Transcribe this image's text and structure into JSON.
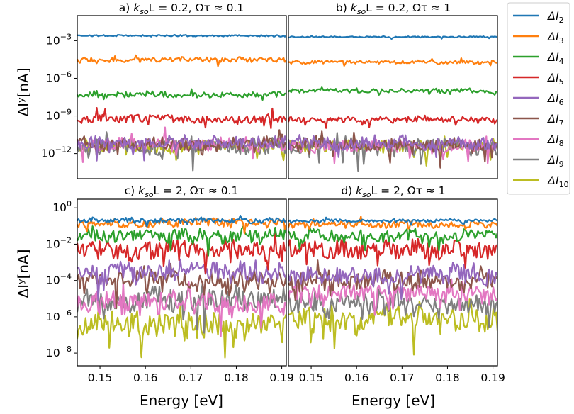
{
  "chart_data": {
    "type": "line",
    "panels": [
      {
        "title_pre": "a) ",
        "title_k": "k",
        "title_sub": "so",
        "title_post": "L = 0.2,    Ωτ ≈ 0.1",
        "ylabel": "ΔIʸ[nA]",
        "xlabel": "",
        "yscale": "log",
        "ylim": [
          1e-14,
          0.1
        ],
        "xlim": [
          0.145,
          0.191
        ],
        "yticks": [
          {
            "base": "10",
            "exp": "−3",
            "value": 0.001
          },
          {
            "base": "10",
            "exp": "−6",
            "value": 1e-06
          },
          {
            "base": "10",
            "exp": "−9",
            "value": 1e-09
          },
          {
            "base": "10",
            "exp": "−12",
            "value": 1e-12
          }
        ],
        "xticks": [],
        "levels": [
          0.0025,
          3e-05,
          5e-08,
          6e-10,
          8e-12,
          6e-12,
          5e-12,
          4e-12,
          4e-12
        ],
        "roughness": [
          0.12,
          0.35,
          0.45,
          0.6,
          0.9,
          0.9,
          0.9,
          1.1,
          0.9
        ]
      },
      {
        "title_pre": "b) ",
        "title_k": "k",
        "title_sub": "so",
        "title_post": "L = 0.2,    Ωτ ≈ 1",
        "ylabel": "",
        "xlabel": "",
        "yscale": "log",
        "ylim": [
          1e-14,
          0.1
        ],
        "xlim": [
          0.145,
          0.191
        ],
        "yticks": [],
        "xticks": [],
        "levels": [
          0.002,
          2e-05,
          1e-07,
          5e-10,
          6e-12,
          5e-12,
          4e-12,
          4e-12,
          4e-12
        ],
        "roughness": [
          0.1,
          0.25,
          0.3,
          0.45,
          0.9,
          0.9,
          0.9,
          1.3,
          0.9
        ]
      },
      {
        "title_pre": "c) ",
        "title_k": "k",
        "title_sub": "so",
        "title_post": "L = 2,    Ωτ ≈ 0.1",
        "ylabel": "ΔIʸ[nA]",
        "xlabel": "Energy [eV]",
        "yscale": "log",
        "ylim": [
          2e-09,
          3
        ],
        "xlim": [
          0.145,
          0.191
        ],
        "yticks": [
          {
            "base": "10",
            "exp": "0",
            "value": 1
          },
          {
            "base": "10",
            "exp": "−2",
            "value": 0.01
          },
          {
            "base": "10",
            "exp": "−4",
            "value": 0.0001
          },
          {
            "base": "10",
            "exp": "−6",
            "value": 1e-06
          },
          {
            "base": "10",
            "exp": "−8",
            "value": 1e-08
          }
        ],
        "xticks": [
          "0.15",
          "0.16",
          "0.17",
          "0.18",
          "0.19"
        ],
        "levels": [
          0.2,
          0.15,
          0.03,
          0.005,
          0.0003,
          0.0001,
          5e-06,
          8e-06,
          3e-07
        ],
        "roughness": [
          0.25,
          0.4,
          0.7,
          0.9,
          1.0,
          1.0,
          1.1,
          1.2,
          1.3
        ]
      },
      {
        "title_pre": "d) ",
        "title_k": "k",
        "title_sub": "so",
        "title_post": "L = 2,    Ωτ ≈ 1",
        "ylabel": "",
        "xlabel": "Energy [eV]",
        "yscale": "log",
        "ylim": [
          2e-09,
          3
        ],
        "xlim": [
          0.145,
          0.191
        ],
        "yticks": [],
        "xticks": [
          "0.15",
          "0.16",
          "0.17",
          "0.18",
          "0.19"
        ],
        "levels": [
          0.2,
          0.12,
          0.03,
          0.005,
          0.0002,
          0.0001,
          2e-05,
          5e-06,
          6e-07
        ],
        "roughness": [
          0.15,
          0.35,
          0.6,
          0.9,
          1.0,
          1.0,
          1.0,
          1.1,
          1.2
        ]
      }
    ],
    "series": [
      {
        "name": "ΔI",
        "sub": "2",
        "color": "#1f77b4"
      },
      {
        "name": "ΔI",
        "sub": "3",
        "color": "#ff7f0e"
      },
      {
        "name": "ΔI",
        "sub": "4",
        "color": "#2ca02c"
      },
      {
        "name": "ΔI",
        "sub": "5",
        "color": "#d62728"
      },
      {
        "name": "ΔI",
        "sub": "6",
        "color": "#9467bd"
      },
      {
        "name": "ΔI",
        "sub": "7",
        "color": "#8c564b"
      },
      {
        "name": "ΔI",
        "sub": "8",
        "color": "#e377c2"
      },
      {
        "name": "ΔI",
        "sub": "9",
        "color": "#7f7f7f"
      },
      {
        "name": "ΔI",
        "sub": "10",
        "color": "#bcbd22"
      }
    ],
    "legend_position": "outside-right",
    "grid": false
  }
}
